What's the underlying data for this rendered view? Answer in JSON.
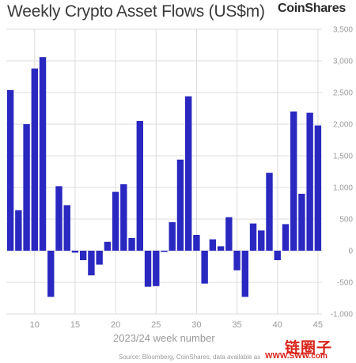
{
  "header": {
    "title": "Weekly Crypto Asset Flows (US$m)",
    "brand": "CoinShares"
  },
  "footer": {
    "source": "Source: Bloomberg, CoinShares, data available as",
    "watermark_cn": "链圈子",
    "watermark_url": "WWW.SWW.com"
  },
  "colors": {
    "bar": "#2a28c0",
    "grid": "#dcdcdc",
    "axis_text": "#9a9a9a"
  },
  "chart_data": {
    "type": "bar",
    "title": "Weekly Crypto Asset Flows (US$m)",
    "xlabel": "2023/24 week number",
    "ylabel": "",
    "ylim": [
      -1000,
      3500
    ],
    "yticks": [
      -1000,
      -500,
      0,
      500,
      1000,
      1500,
      2000,
      2500,
      3000,
      3500
    ],
    "ytick_labels": [
      "-1,000",
      "-500",
      "0",
      "500",
      "1,000",
      "1,500",
      "2,000",
      "2,500",
      "3,000",
      "3,500"
    ],
    "xticks": [
      10,
      15,
      20,
      25,
      30,
      35,
      40,
      45
    ],
    "y_axis_side": "right",
    "grid": "horizontal and vertical",
    "x": [
      7,
      8,
      9,
      10,
      11,
      12,
      13,
      14,
      15,
      16,
      17,
      18,
      19,
      20,
      21,
      22,
      23,
      24,
      25,
      26,
      27,
      28,
      29,
      30,
      31,
      32,
      33,
      34,
      35,
      36,
      37,
      38,
      39,
      40,
      41,
      42,
      43,
      44,
      45
    ],
    "values": [
      2540,
      640,
      2000,
      2880,
      3060,
      -730,
      1020,
      720,
      -30,
      -150,
      -390,
      -220,
      140,
      930,
      1050,
      200,
      2050,
      -570,
      -560,
      -20,
      450,
      1440,
      2440,
      250,
      -520,
      180,
      70,
      530,
      -310,
      -730,
      430,
      320,
      1230,
      -150,
      420,
      2200,
      900,
      2180,
      1980
    ]
  }
}
